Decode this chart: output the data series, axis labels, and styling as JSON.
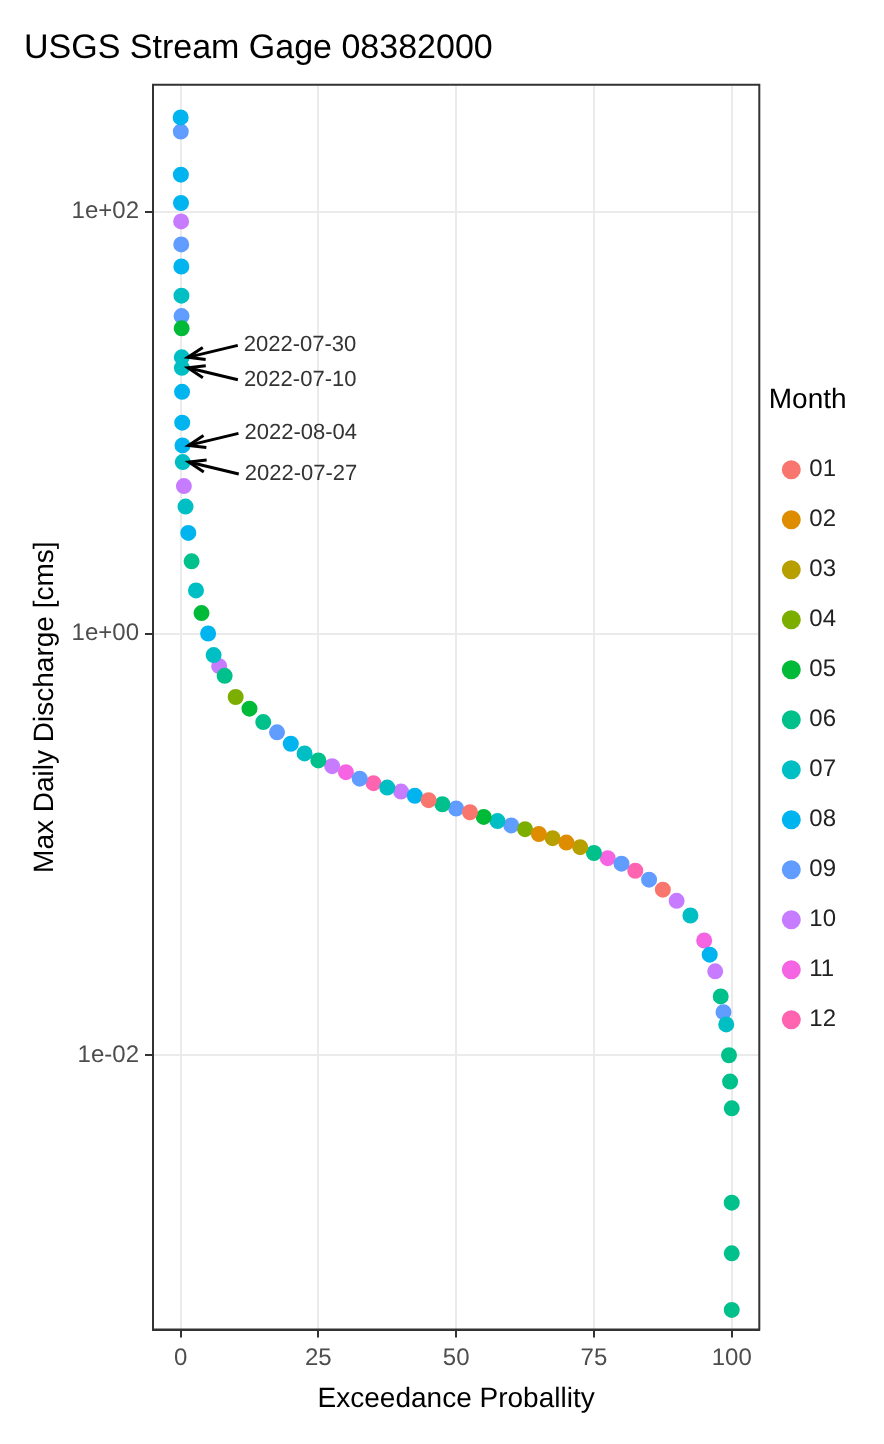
{
  "chart_data": {
    "type": "scatter",
    "title": "USGS Stream Gage 08382000",
    "xlabel": "Exceedance Proballity",
    "ylabel": "Max Daily Discharge [cms]",
    "legend_title": "Month",
    "legend": "right",
    "grid": true,
    "log": "y",
    "marker": "circle",
    "xlim": [
      -5,
      105
    ],
    "xticks": [
      0,
      25,
      50,
      75,
      100
    ],
    "ylim": [
      0.0005,
      400
    ],
    "yticks": [
      {
        "value": 100,
        "label": "1e+02"
      },
      {
        "value": 1,
        "label": "1e+00"
      },
      {
        "value": 0.01,
        "label": "1e-02"
      }
    ],
    "annotations": [
      {
        "text": "2022-07-30",
        "x": 0.22,
        "y": 20.4
      },
      {
        "text": "2022-07-10",
        "x": 0.24,
        "y": 18.2
      },
      {
        "text": "2022-08-04",
        "x": 0.35,
        "y": 7.8
      },
      {
        "text": "2022-07-27",
        "x": 0.4,
        "y": 6.5
      }
    ],
    "series": [
      {
        "name": "01",
        "color": "#f8766d",
        "x": [
          45,
          52.5,
          87.5
        ],
        "values": [
          0.162,
          0.142,
          0.061
        ]
      },
      {
        "name": "02",
        "color": "#de8c00",
        "x": [
          65,
          70
        ],
        "values": [
          0.112,
          0.102
        ]
      },
      {
        "name": "03",
        "color": "#b79f00",
        "x": [
          67.5,
          72.5
        ],
        "values": [
          0.107,
          0.097
        ]
      },
      {
        "name": "04",
        "color": "#7cae00",
        "x": [
          10,
          62.5
        ],
        "values": [
          0.5,
          0.118
        ]
      },
      {
        "name": "05",
        "color": "#00ba38",
        "x": [
          0.2,
          3.8,
          12.5,
          55
        ],
        "values": [
          28,
          1.25,
          0.44,
          0.135
        ]
      },
      {
        "name": "06",
        "color": "#00c08b",
        "x": [
          2.0,
          8,
          15,
          25,
          47.5,
          75,
          98,
          99.5,
          99.7,
          100,
          100,
          100,
          100
        ],
        "values": [
          2.2,
          0.63,
          0.38,
          0.25,
          0.155,
          0.091,
          0.019,
          0.01,
          0.0075,
          0.0056,
          0.002,
          0.00115,
          0.00062
        ]
      },
      {
        "name": "07",
        "color": "#00bfc4",
        "x": [
          0.16,
          0.22,
          0.24,
          0.4,
          0.9,
          2.8,
          6,
          22.5,
          37.5,
          57.5,
          92.5,
          99
        ],
        "values": [
          40,
          20.4,
          18.2,
          6.5,
          4,
          1.6,
          0.79,
          0.27,
          0.186,
          0.129,
          0.046,
          0.014
        ]
      },
      {
        "name": "08",
        "color": "#00b4f0",
        "x": [
          0.02,
          0.06,
          0.08,
          0.14,
          0.27,
          0.3,
          0.35,
          1.4,
          5,
          20,
          42.5,
          96
        ],
        "values": [
          280,
          150,
          110,
          55,
          14,
          10,
          7.8,
          3,
          1.0,
          0.3,
          0.17,
          0.03
        ]
      },
      {
        "name": "09",
        "color": "#619cff",
        "x": [
          0.04,
          0.12,
          0.18,
          17.5,
          32.5,
          50,
          60,
          80,
          85,
          98.5
        ],
        "values": [
          240,
          70,
          32,
          0.34,
          0.205,
          0.148,
          0.123,
          0.081,
          0.068,
          0.016
        ]
      },
      {
        "name": "10",
        "color": "#c77cff",
        "x": [
          0.1,
          0.6,
          7,
          27.5,
          40,
          90,
          97
        ],
        "values": [
          90,
          5,
          0.7,
          0.235,
          0.178,
          0.054,
          0.025
        ]
      },
      {
        "name": "11",
        "color": "#f564e3",
        "x": [
          30,
          77.5,
          95
        ],
        "values": [
          0.22,
          0.086,
          0.035
        ]
      },
      {
        "name": "12",
        "color": "#ff64b0",
        "x": [
          35,
          82.5
        ],
        "values": [
          0.195,
          0.075
        ]
      }
    ]
  }
}
